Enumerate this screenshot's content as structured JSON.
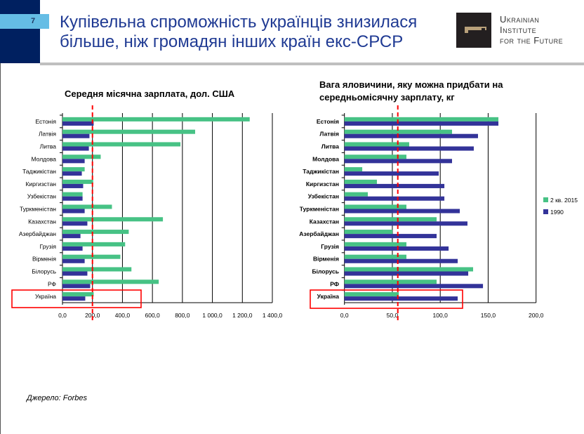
{
  "header": {
    "slide_number": "7",
    "title_line1": "Купівельна спроможність українців знизилася",
    "title_line2": "більше, ніж громадян інших країн екс-СРСР",
    "logo_text": [
      "Ukrainian",
      "Institute",
      "for the Future"
    ]
  },
  "source": "Джерело: Forbes",
  "colors": {
    "series_2015": "#47c285",
    "series_1990": "#333399",
    "reference_line": "#ff0000",
    "highlight_box": "#ff0000",
    "header_navy": "#002060",
    "slide_number_bg": "#65bde5"
  },
  "chart_data": [
    {
      "type": "bar",
      "orientation": "horizontal",
      "title": "Середня місячна зарплата, дол. США",
      "categories": [
        "Естонія",
        "Латвія",
        "Литва",
        "Молдова",
        "Таджикістан",
        "Киргизстан",
        "Узбекістан",
        "Туркменістан",
        "Казахстан",
        "Азербайджан",
        "Грузія",
        "Вірменія",
        "Білорусь",
        "РФ",
        "Україна"
      ],
      "series": [
        {
          "values": [
            1249,
            885,
            787,
            255,
            148,
            205,
            134,
            330,
            670,
            442,
            418,
            386,
            460,
            642,
            208
          ]
        },
        {
          "values": [
            208,
            180,
            176,
            148,
            129,
            138,
            134,
            148,
            166,
            120,
            134,
            148,
            166,
            185,
            152
          ]
        }
      ],
      "xlim": [
        0,
        1400
      ],
      "ticks": [
        "0,0",
        "200,0",
        "400,0",
        "600,0",
        "800,0",
        "1 000,0",
        "1 200,0",
        "1 400,0"
      ],
      "tick_values": [
        0,
        200,
        400,
        600,
        800,
        1000,
        1200,
        1400
      ],
      "reference_line": 200,
      "highlighted_category": "Україна",
      "grid": "vertical"
    },
    {
      "type": "bar",
      "orientation": "horizontal",
      "title": "Вага яловичини, яку можна придбати на середньомісячну зарплату, кг",
      "categories": [
        "Естонія",
        "Латвія",
        "Литва",
        "Молдова",
        "Таджикістан",
        "Киргизстан",
        "Узбекістан",
        "Туркменістан",
        "Казахстан",
        "Азербайджан",
        "Грузія",
        "Вірменія",
        "Білорусь",
        "РФ",
        "Україна"
      ],
      "series": [
        {
          "name": "2 кв. 2015",
          "values": [
            160.7,
            112.3,
            67.6,
            64.7,
            18.6,
            33.9,
            24.4,
            64.7,
            96.2,
            50.1,
            64.7,
            64.7,
            134.3,
            96.2,
            56.7
          ]
        },
        {
          "name": "1990",
          "values": [
            160.7,
            139.4,
            135.0,
            112.3,
            98.4,
            104.3,
            104.3,
            120.4,
            128.4,
            96.2,
            108.7,
            118.2,
            129.2,
            144.6,
            118.2
          ]
        }
      ],
      "xlim": [
        0,
        200
      ],
      "ticks": [
        "0,0",
        "50,0",
        "100,0",
        "150,0",
        "200,0"
      ],
      "tick_values": [
        0,
        50,
        100,
        150,
        200
      ],
      "reference_line": 55.7,
      "highlighted_category": "Україна",
      "legend": "right",
      "grid": "vertical"
    }
  ]
}
